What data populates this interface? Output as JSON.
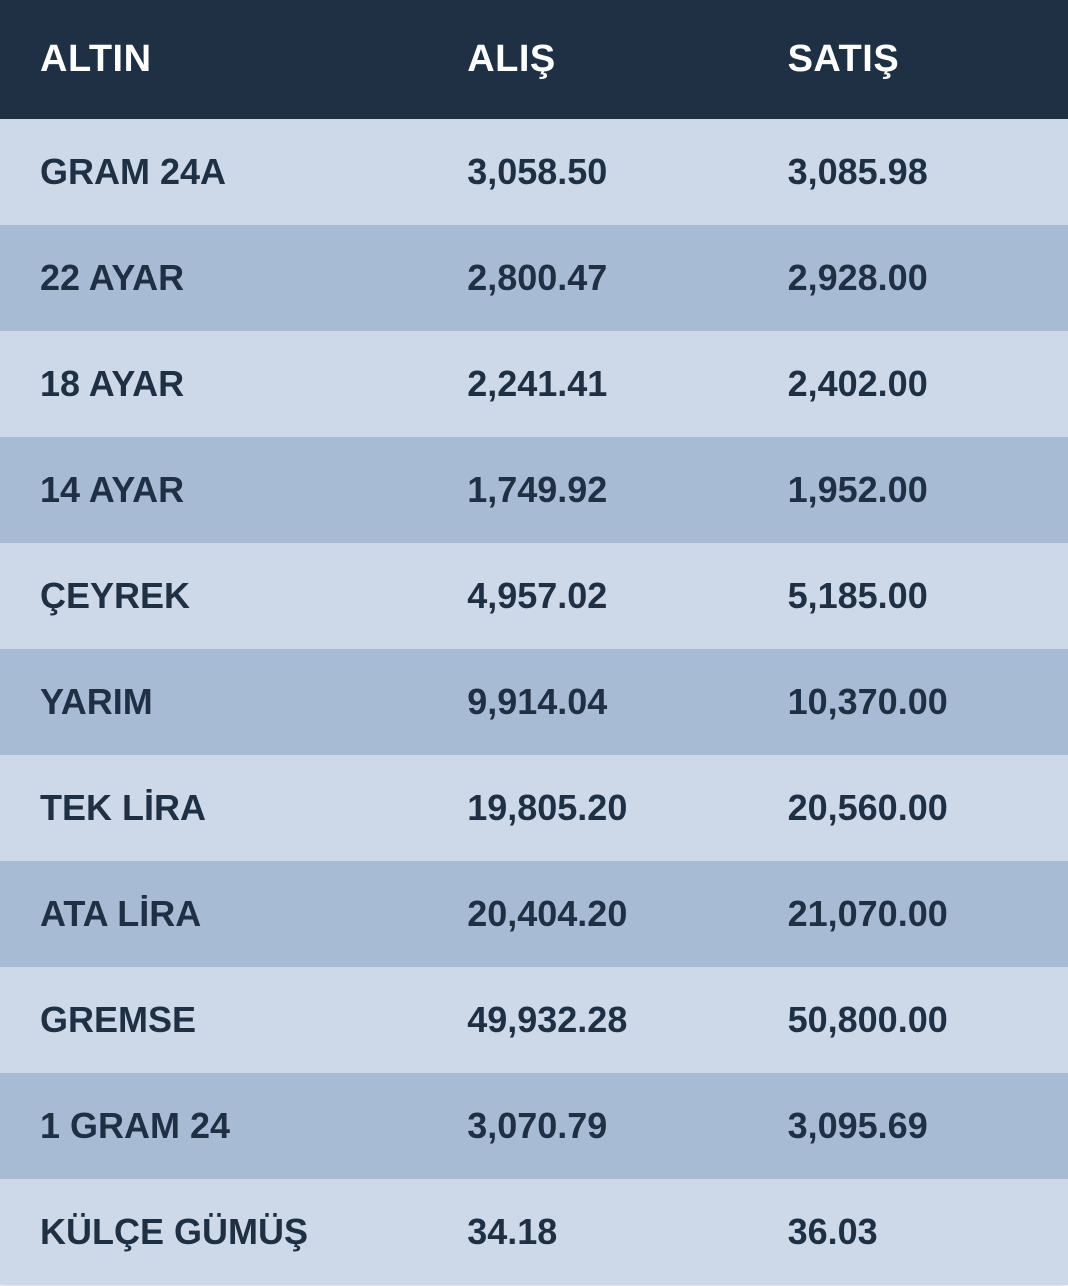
{
  "table": {
    "type": "table",
    "header_bg": "#1f2f44",
    "header_fg": "#ffffff",
    "row_bg_odd": "#cdd9e8",
    "row_bg_even": "#a7bcd4",
    "cell_fg": "#1f2f44",
    "header_fontsize": 38,
    "cell_fontsize": 36,
    "columns": [
      {
        "key": "name",
        "label": "ALTIN"
      },
      {
        "key": "buy",
        "label": "ALIŞ"
      },
      {
        "key": "sell",
        "label": "SATIŞ"
      }
    ],
    "rows": [
      {
        "name": "GRAM 24A",
        "buy": "3,058.50",
        "sell": "3,085.98"
      },
      {
        "name": "22 AYAR",
        "buy": "2,800.47",
        "sell": "2,928.00"
      },
      {
        "name": "18 AYAR",
        "buy": "2,241.41",
        "sell": "2,402.00"
      },
      {
        "name": "14 AYAR",
        "buy": "1,749.92",
        "sell": "1,952.00"
      },
      {
        "name": "ÇEYREK",
        "buy": "4,957.02",
        "sell": "5,185.00"
      },
      {
        "name": "YARIM",
        "buy": "9,914.04",
        "sell": "10,370.00"
      },
      {
        "name": "TEK LİRA",
        "buy": "19,805.20",
        "sell": "20,560.00"
      },
      {
        "name": "ATA LİRA",
        "buy": "20,404.20",
        "sell": "21,070.00"
      },
      {
        "name": "GREMSE",
        "buy": "49,932.28",
        "sell": "50,800.00"
      },
      {
        "name": "1 GRAM 24",
        "buy": "3,070.79",
        "sell": "3,095.69"
      },
      {
        "name": "KÜLÇE GÜMÜŞ",
        "buy": "34.18",
        "sell": "36.03"
      }
    ]
  }
}
